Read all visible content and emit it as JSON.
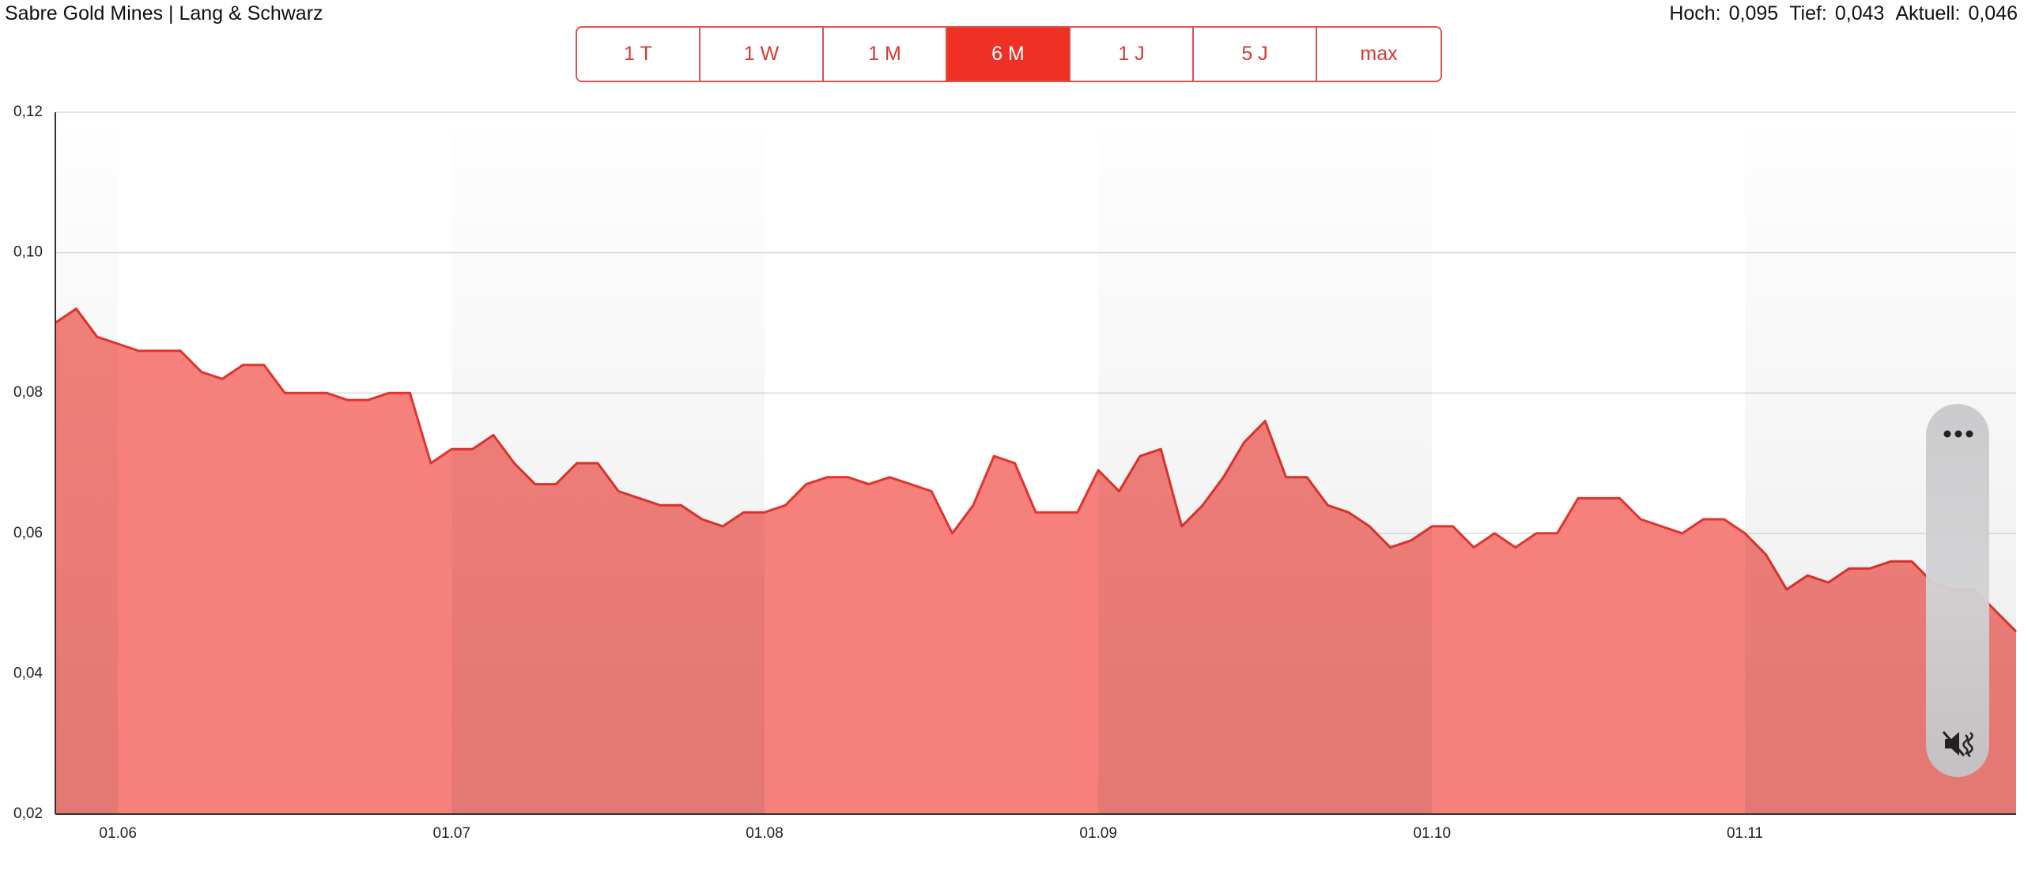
{
  "header": {
    "title": "Sabre Gold Mines | Lang & Schwarz",
    "ranges": [
      {
        "label": "1 T",
        "active": false
      },
      {
        "label": "1 W",
        "active": false
      },
      {
        "label": "1 M",
        "active": false
      },
      {
        "label": "6 M",
        "active": true
      },
      {
        "label": "1 J",
        "active": false
      },
      {
        "label": "5 J",
        "active": false
      },
      {
        "label": "max",
        "active": false
      }
    ],
    "stats": [
      {
        "label": "Hoch:",
        "value": "0,095"
      },
      {
        "label": "Tief:",
        "value": "0,043"
      },
      {
        "label": "Aktuell:",
        "value": "0,046"
      }
    ]
  },
  "chart_data": {
    "type": "area",
    "color": "#f6817c",
    "line_color": "#e2332c",
    "categories": [
      null,
      null,
      null,
      "01.06",
      null,
      null,
      null,
      null,
      null,
      null,
      null,
      null,
      null,
      null,
      null,
      null,
      null,
      null,
      null,
      "01.07",
      null,
      null,
      null,
      null,
      null,
      null,
      null,
      null,
      null,
      null,
      null,
      null,
      null,
      null,
      "01.08",
      null,
      null,
      null,
      null,
      null,
      null,
      null,
      null,
      null,
      null,
      null,
      null,
      null,
      null,
      null,
      "01.09",
      null,
      null,
      null,
      null,
      null,
      null,
      null,
      null,
      null,
      null,
      null,
      null,
      null,
      null,
      null,
      "01.10",
      null,
      null,
      null,
      null,
      null,
      null,
      null,
      null,
      null,
      null,
      null,
      null,
      null,
      null,
      "01.11",
      null,
      null,
      null,
      null,
      null,
      null,
      null,
      null,
      null,
      null,
      null,
      null,
      null
    ],
    "values": [
      0.09,
      0.092,
      0.088,
      0.087,
      0.086,
      0.086,
      0.086,
      0.083,
      0.082,
      0.084,
      0.084,
      0.08,
      0.08,
      0.08,
      0.079,
      0.079,
      0.08,
      0.08,
      0.07,
      0.072,
      0.072,
      0.074,
      0.07,
      0.067,
      0.067,
      0.07,
      0.07,
      0.066,
      0.065,
      0.064,
      0.064,
      0.062,
      0.061,
      0.063,
      0.063,
      0.064,
      0.067,
      0.068,
      0.068,
      0.067,
      0.068,
      0.067,
      0.066,
      0.06,
      0.064,
      0.071,
      0.07,
      0.063,
      0.063,
      0.063,
      0.069,
      0.066,
      0.071,
      0.072,
      0.061,
      0.064,
      0.068,
      0.073,
      0.076,
      0.068,
      0.068,
      0.064,
      0.063,
      0.061,
      0.058,
      0.059,
      0.061,
      0.061,
      0.058,
      0.06,
      0.058,
      0.06,
      0.06,
      0.065,
      0.065,
      0.065,
      0.062,
      0.061,
      0.06,
      0.062,
      0.062,
      0.06,
      0.057,
      0.052,
      0.054,
      0.053,
      0.055,
      0.055,
      0.056,
      0.056,
      0.053,
      0.052,
      0.052,
      0.049,
      0.046
    ],
    "ylim": [
      0.02,
      0.12
    ],
    "yticks": [
      {
        "value": 0.02,
        "label": "0,02"
      },
      {
        "value": 0.04,
        "label": "0,04"
      },
      {
        "value": 0.06,
        "label": "0,06"
      },
      {
        "value": 0.08,
        "label": "0,08"
      },
      {
        "value": 0.1,
        "label": "0,10"
      },
      {
        "value": 0.12,
        "label": "0,12"
      }
    ],
    "grid": true
  }
}
